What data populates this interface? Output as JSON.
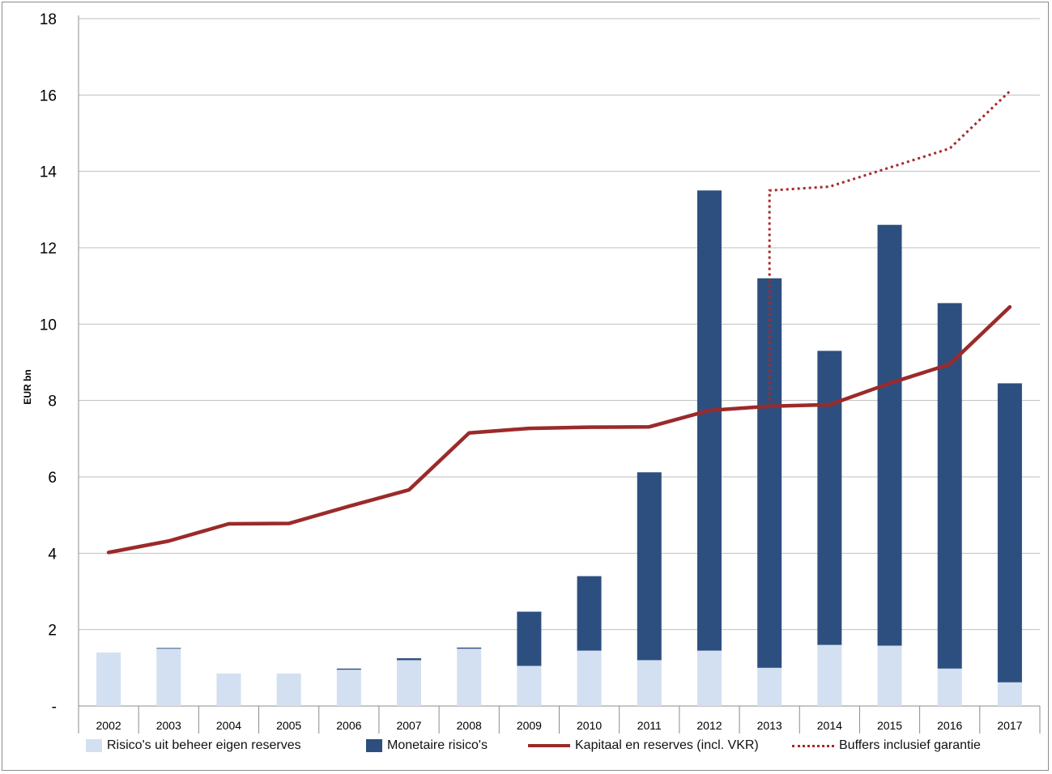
{
  "chart_data": {
    "type": "bar",
    "title": "",
    "xlabel": "",
    "ylabel": "EUR bn",
    "ylim": [
      0,
      18
    ],
    "yticks": [
      0,
      2,
      4,
      6,
      8,
      10,
      12,
      14,
      16,
      18
    ],
    "ytick_labels": [
      "-",
      "2",
      "4",
      "6",
      "8",
      "10",
      "12",
      "14",
      "16",
      "18"
    ],
    "categories": [
      "2002",
      "2003",
      "2004",
      "2005",
      "2006",
      "2007",
      "2008",
      "2009",
      "2010",
      "2011",
      "2012",
      "2013",
      "2014",
      "2015",
      "2016",
      "2017"
    ],
    "stacked": true,
    "series": [
      {
        "name": "Risico's uit beheer eigen reserves",
        "kind": "bar",
        "color": "#d3e0f1",
        "values": [
          1.4,
          1.5,
          0.85,
          0.85,
          0.95,
          1.2,
          1.5,
          1.05,
          1.45,
          1.2,
          1.45,
          1.0,
          1.6,
          1.58,
          0.98,
          0.62
        ]
      },
      {
        "name": "Monetaire risico's",
        "kind": "bar",
        "color": "#2d4f80",
        "values": [
          0.0,
          0.02,
          0.0,
          0.0,
          0.03,
          0.05,
          0.03,
          1.42,
          1.95,
          4.92,
          12.05,
          10.2,
          7.7,
          11.02,
          9.57,
          7.83
        ]
      },
      {
        "name": "Kapitaal en reserves (incl. VKR)",
        "kind": "line",
        "color": "#9b2a2a",
        "values": [
          4.02,
          4.32,
          4.77,
          4.78,
          5.23,
          5.66,
          7.15,
          7.27,
          7.3,
          7.31,
          7.74,
          7.85,
          7.89,
          8.45,
          8.95,
          10.45
        ]
      },
      {
        "name": "Buffers inclusief garantie",
        "kind": "dotted-line",
        "color": "#a52a2a",
        "values": [
          null,
          null,
          null,
          null,
          null,
          null,
          null,
          null,
          null,
          null,
          null,
          13.5,
          13.6,
          14.1,
          14.6,
          16.1
        ],
        "start_from": 8.0
      }
    ],
    "legend_position": "bottom",
    "grid": true
  }
}
